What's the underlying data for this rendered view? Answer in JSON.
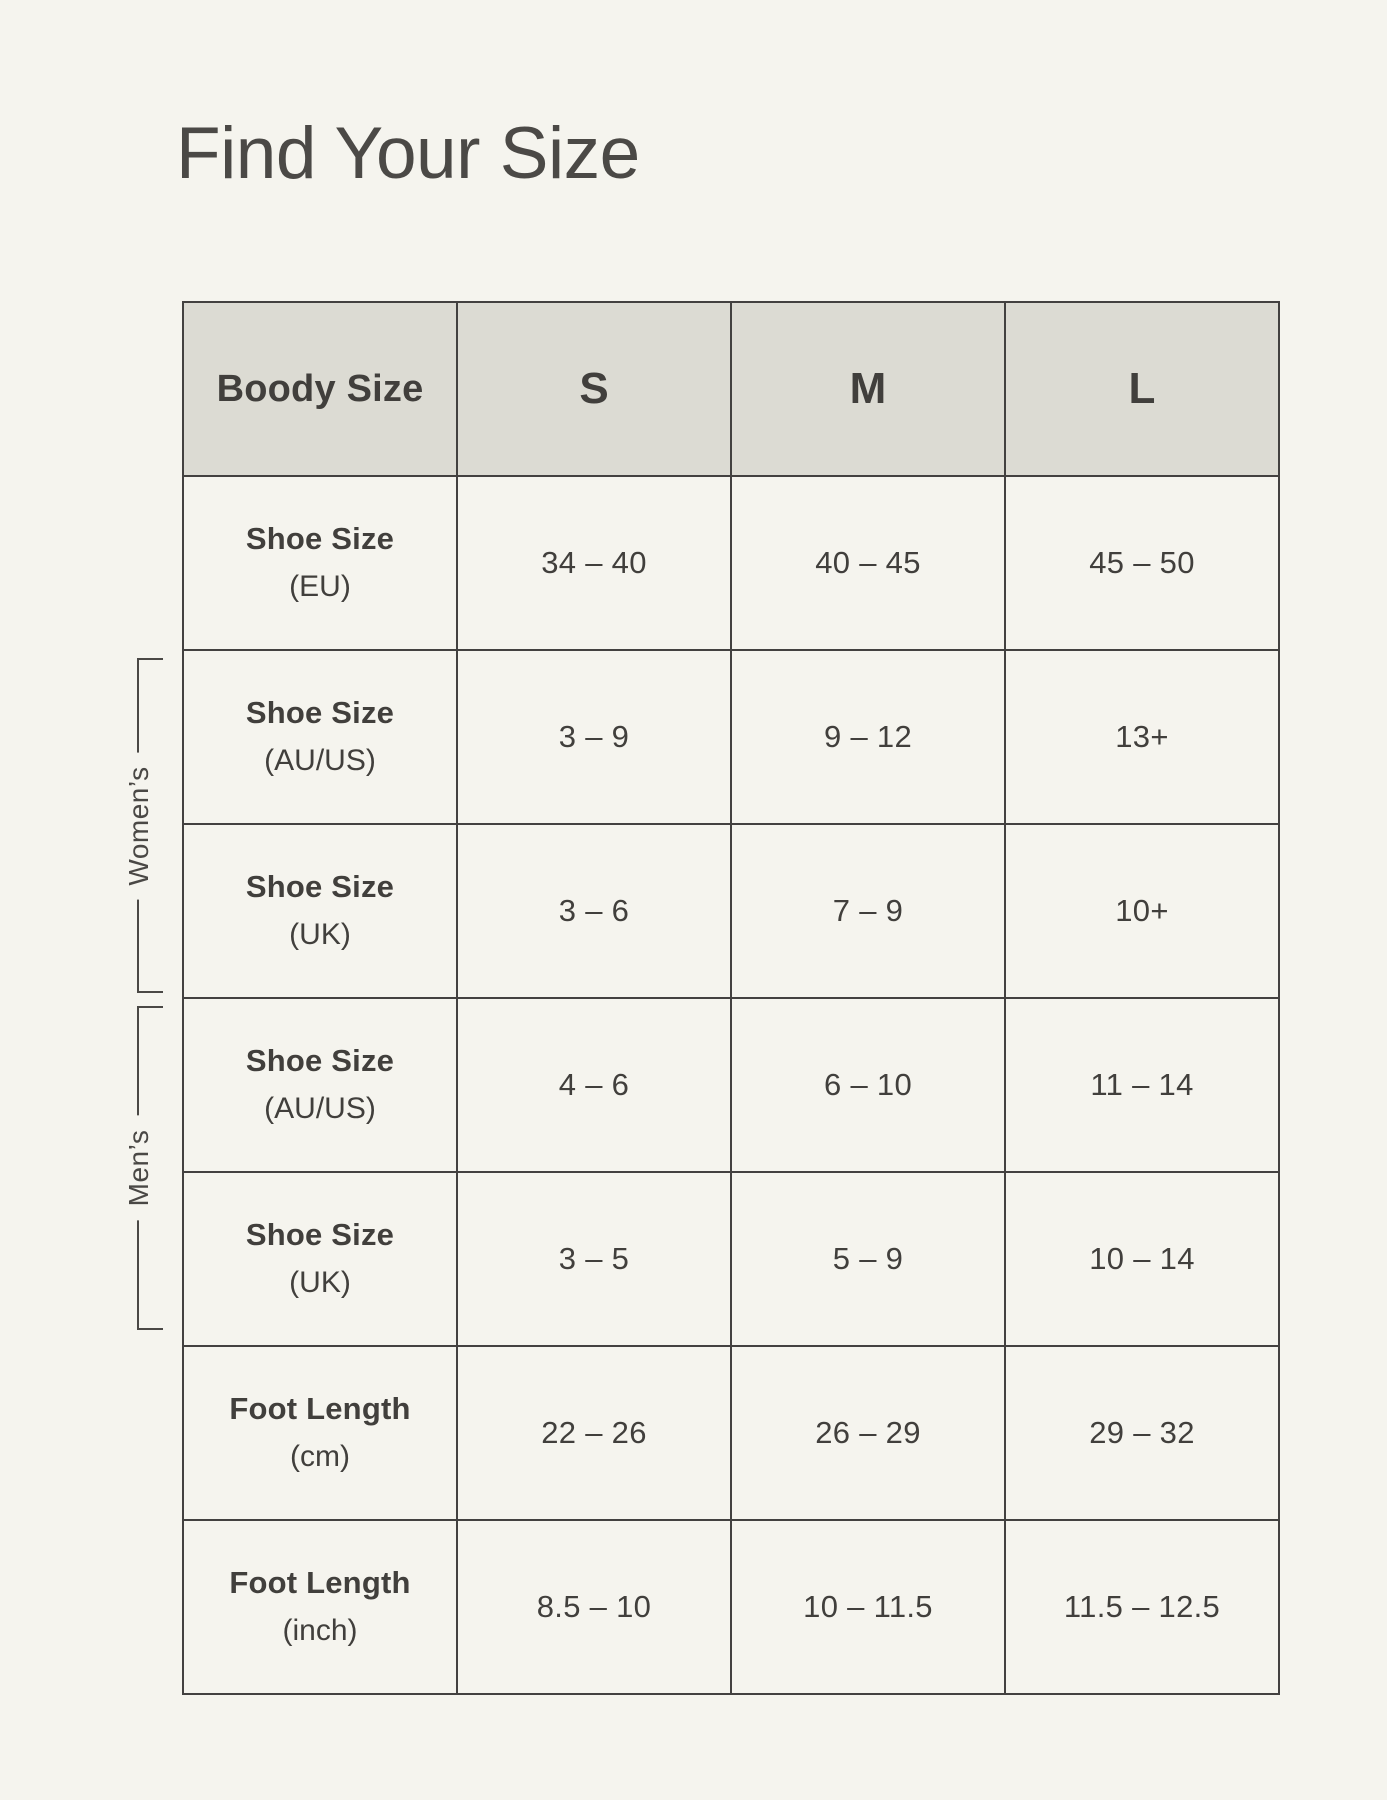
{
  "title": "Find Your Size",
  "colors": {
    "page_bg": "#f5f4ee",
    "header_bg": "#dcdbd3",
    "border_color": "#434140",
    "text_color": "#413f3c",
    "title_color": "#4b4946",
    "bracket_color": "#4a4845"
  },
  "table": {
    "header": {
      "col0": "Boody Size",
      "sizes": [
        "S",
        "M",
        "L"
      ]
    },
    "groups": [
      {
        "id": "womens",
        "label": "Women’s"
      },
      {
        "id": "mens",
        "label": "Men’s"
      }
    ],
    "rows": [
      {
        "label_line1": "Shoe Size",
        "label_line2": "(EU)",
        "group": null,
        "values": [
          "34 – 40",
          "40 – 45",
          "45 – 50"
        ]
      },
      {
        "label_line1": "Shoe Size",
        "label_line2": "(AU/US)",
        "group": "womens",
        "values": [
          "3 – 9",
          "9 – 12",
          "13+"
        ]
      },
      {
        "label_line1": "Shoe Size",
        "label_line2": "(UK)",
        "group": "womens",
        "values": [
          "3 – 6",
          "7 – 9",
          "10+"
        ]
      },
      {
        "label_line1": "Shoe Size",
        "label_line2": "(AU/US)",
        "group": "mens",
        "values": [
          "4 – 6",
          "6 – 10",
          "11 – 14"
        ]
      },
      {
        "label_line1": "Shoe Size",
        "label_line2": "(UK)",
        "group": "mens",
        "values": [
          "3 – 5",
          "5 – 9",
          "10 – 14"
        ]
      },
      {
        "label_line1": "Foot Length",
        "label_line2": "(cm)",
        "group": null,
        "values": [
          "22 – 26",
          "26 – 29",
          "29 – 32"
        ]
      },
      {
        "label_line1": "Foot Length",
        "label_line2": "(inch)",
        "group": null,
        "values": [
          "8.5 – 10",
          "10 – 11.5",
          "11.5 – 12.5"
        ]
      }
    ]
  }
}
